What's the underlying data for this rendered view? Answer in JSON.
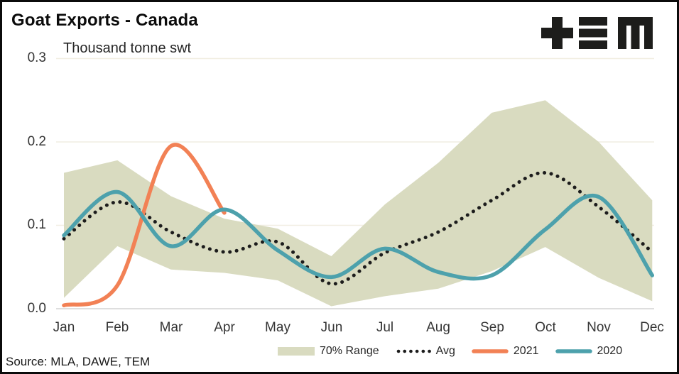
{
  "header": {
    "title": "Goat Exports - Canada",
    "units_label": "Thousand tonne swt",
    "logo_name": "TEM",
    "logo_color": "#1d1d1b"
  },
  "footer": {
    "source": "Source: MLA, DAWE, TEM"
  },
  "chart_data": {
    "type": "line",
    "title": "Goat Exports - Canada",
    "ylabel": "Thousand tonne swt",
    "xlabel": "",
    "categories": [
      "Jan",
      "Feb",
      "Mar",
      "Apr",
      "May",
      "Jun",
      "Jul",
      "Aug",
      "Sep",
      "Oct",
      "Nov",
      "Dec"
    ],
    "y_tick_labels_top_down": [
      "0.3",
      "0.2",
      "0.1",
      "0.0"
    ],
    "ylim": [
      0.0,
      0.3
    ],
    "grid": true,
    "legend_position": "bottom-center",
    "gridline_color": "#f1eee2",
    "axis_line_color": "#d4d4d4",
    "band": {
      "name": "70% Range",
      "color": "#d9dbc0",
      "upper": [
        0.163,
        0.178,
        0.135,
        0.108,
        0.096,
        0.063,
        0.125,
        0.175,
        0.235,
        0.25,
        0.2,
        0.13
      ],
      "lower": [
        0.013,
        0.075,
        0.047,
        0.043,
        0.034,
        0.003,
        0.015,
        0.024,
        0.045,
        0.074,
        0.037,
        0.009
      ]
    },
    "series": [
      {
        "name": "Avg",
        "style": "dotted",
        "color": "#1c1c1c",
        "values": [
          0.084,
          0.128,
          0.092,
          0.068,
          0.08,
          0.03,
          0.067,
          0.092,
          0.13,
          0.163,
          0.122,
          0.068
        ]
      },
      {
        "name": "2021",
        "style": "solid",
        "color": "#f28155",
        "values": [
          0.004,
          0.028,
          0.195,
          0.115,
          null,
          null,
          null,
          null,
          null,
          null,
          null,
          null
        ]
      },
      {
        "name": "2020",
        "style": "solid",
        "color": "#4da1ac",
        "values": [
          0.088,
          0.14,
          0.075,
          0.119,
          0.07,
          0.038,
          0.072,
          0.044,
          0.04,
          0.095,
          0.134,
          0.04
        ]
      }
    ]
  }
}
